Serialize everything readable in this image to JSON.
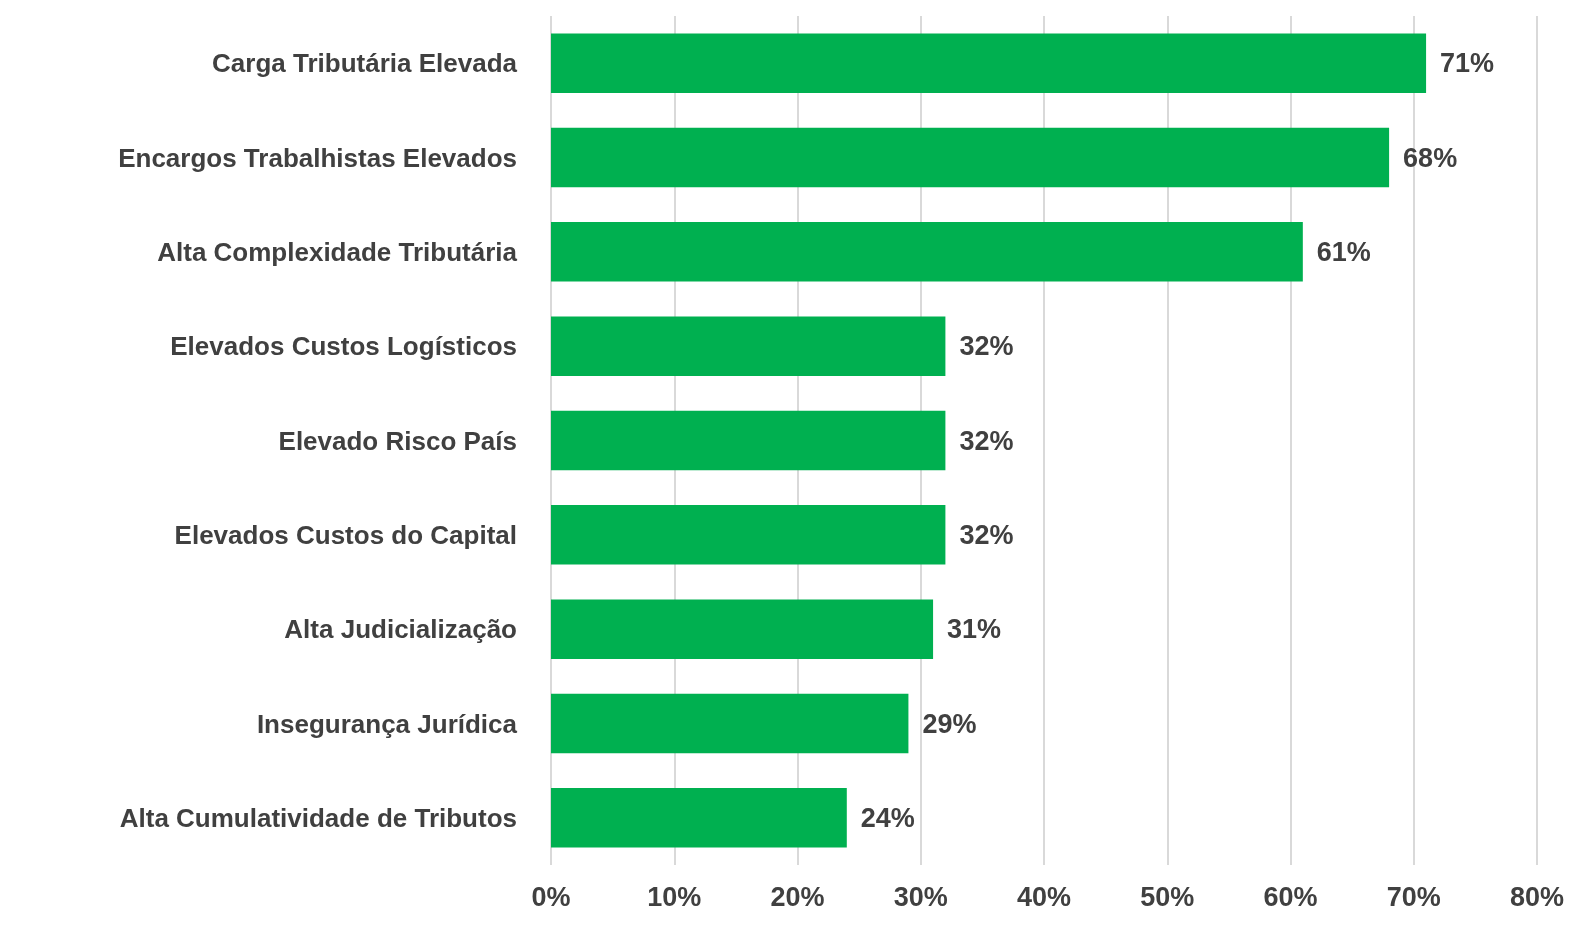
{
  "chart_data": {
    "type": "bar",
    "orientation": "horizontal",
    "categories": [
      "Carga Tributária Elevada",
      "Encargos Trabalhistas Elevados",
      "Alta Complexidade Tributária",
      "Elevados Custos Logísticos",
      "Elevado Risco País",
      "Elevados Custos do Capital",
      "Alta Judicialização",
      "Insegurança Jurídica",
      "Alta Cumulatividade de Tributos"
    ],
    "values": [
      71,
      68,
      61,
      32,
      32,
      32,
      31,
      29,
      24
    ],
    "value_labels": [
      "71%",
      "68%",
      "61%",
      "32%",
      "32%",
      "32%",
      "31%",
      "29%",
      "24%"
    ],
    "color": "#00b050",
    "xlim": [
      0,
      80
    ],
    "xticks": [
      {
        "value": 0,
        "label": "0%"
      },
      {
        "value": 10,
        "label": "10%"
      },
      {
        "value": 20,
        "label": "20%"
      },
      {
        "value": 30,
        "label": "30%"
      },
      {
        "value": 40,
        "label": "40%"
      },
      {
        "value": 50,
        "label": "50%"
      },
      {
        "value": 60,
        "label": "60%"
      },
      {
        "value": 70,
        "label": "70%"
      },
      {
        "value": 80,
        "label": "80%"
      }
    ],
    "grid": "x"
  }
}
